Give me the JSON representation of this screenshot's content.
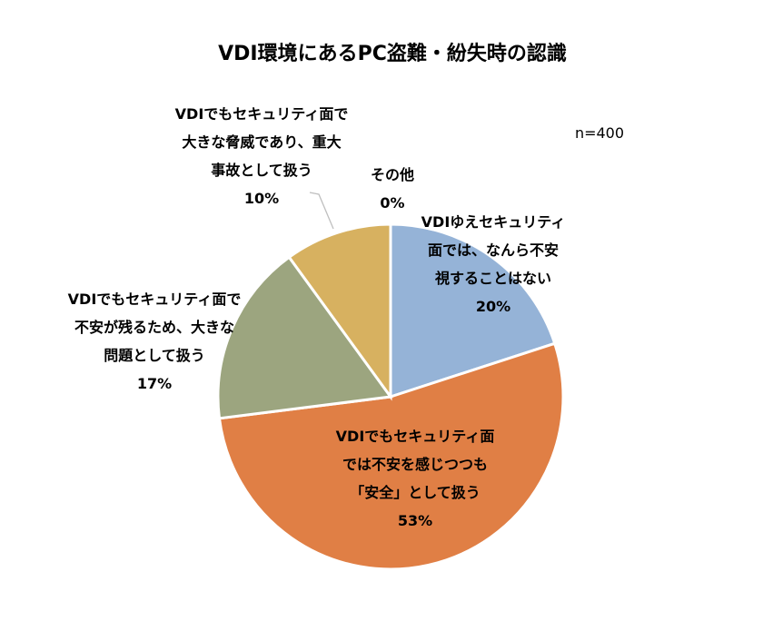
{
  "chart_data": {
    "type": "pie",
    "title": "VDI環境にあるPC盗難・紛失時の認識",
    "note": "n=400",
    "slices": [
      {
        "lines": [
          "VDIゆえセキュリティ",
          "面では、なんら不安",
          "視することはない"
        ],
        "percent_label": "20%",
        "value": 20,
        "color": "#95b3d7"
      },
      {
        "lines": [
          "VDIでもセキュリティ面",
          "では不安を感じつつも",
          "「安全」として扱う"
        ],
        "percent_label": "53%",
        "value": 53,
        "color": "#e07f45"
      },
      {
        "lines": [
          "VDIでもセキュリティ面で",
          "不安が残るため、大きな",
          "問題として扱う"
        ],
        "percent_label": "17%",
        "value": 17,
        "color": "#9ca57f"
      },
      {
        "lines": [
          "VDIでもセキュリティ面で",
          "大きな脅威であり、重大",
          "事故として扱う"
        ],
        "percent_label": "10%",
        "value": 10,
        "color": "#d7b160"
      },
      {
        "lines": [
          "その他"
        ],
        "percent_label": "0%",
        "value": 0,
        "color": "#bfbfbf"
      }
    ]
  }
}
